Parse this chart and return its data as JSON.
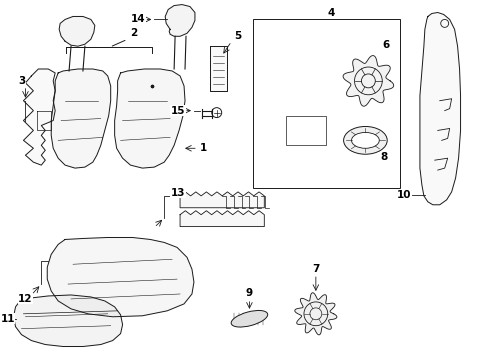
{
  "background_color": "#ffffff",
  "line_color": "#1a1a1a",
  "fig_width": 4.89,
  "fig_height": 3.6,
  "dpi": 100,
  "lw": 0.7
}
